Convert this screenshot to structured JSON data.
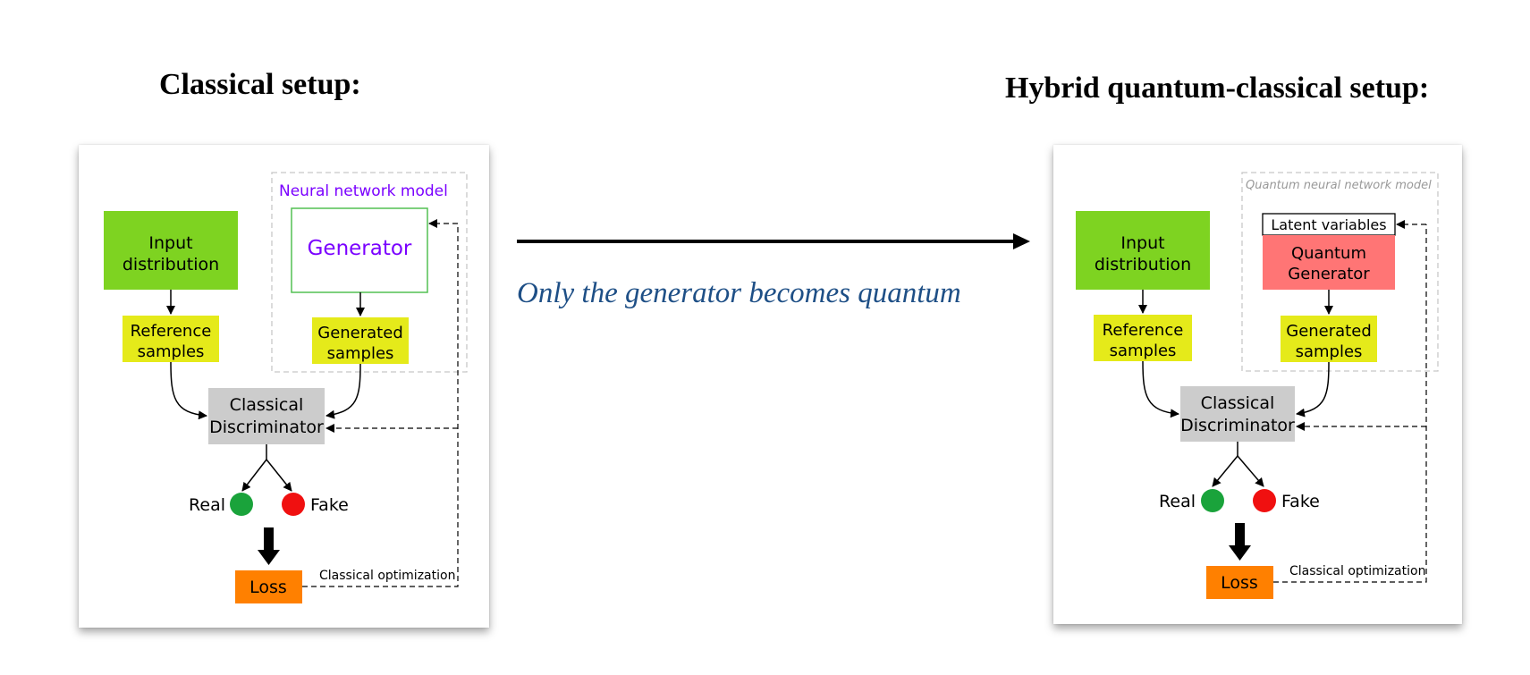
{
  "left": {
    "title": "Classical setup:",
    "model_label": "Neural network model",
    "input": [
      "Input",
      "distribution"
    ],
    "generator": "Generator",
    "reference": [
      "Reference",
      "samples"
    ],
    "generated": [
      "Generated",
      "samples"
    ],
    "discriminator": [
      "Classical",
      "Discriminator"
    ],
    "real": "Real",
    "fake": "Fake",
    "loss": "Loss",
    "optimization": "Classical optimization"
  },
  "right": {
    "title": "Hybrid quantum-classical setup:",
    "model_label": "Quantum neural network model",
    "latent": "Latent variables",
    "input": [
      "Input",
      "distribution"
    ],
    "generator": [
      "Quantum",
      "Generator"
    ],
    "reference": [
      "Reference",
      "samples"
    ],
    "generated": [
      "Generated",
      "samples"
    ],
    "discriminator": [
      "Classical",
      "Discriminator"
    ],
    "real": "Real",
    "fake": "Fake",
    "loss": "Loss",
    "optimization": "Classical optimization"
  },
  "caption": "Only the generator becomes quantum",
  "colors": {
    "input_box": "#7ed321",
    "sample_box": "#e5ea1a",
    "discriminator_box": "#cccccc",
    "real": "#1aa33b",
    "fake": "#f01010",
    "loss_box": "#ff8000",
    "quantum_generator_box": "#ff7575",
    "model_label_left": "#7a00ff",
    "caption": "#1e4f86"
  }
}
